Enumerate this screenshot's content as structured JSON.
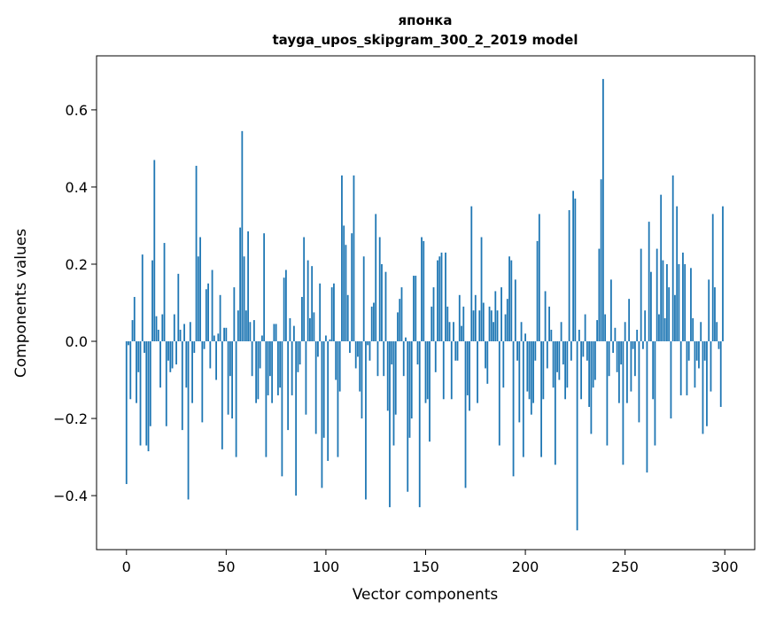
{
  "chart_data": {
    "type": "bar",
    "title": "японка",
    "subtitle": "tayga_upos_skipgram_300_2_2019 model",
    "xlabel": "Vector components",
    "ylabel": "Components values",
    "xlim": [
      -15,
      315
    ],
    "ylim": [
      -0.54,
      0.74
    ],
    "xticks": [
      0,
      50,
      100,
      150,
      200,
      250,
      300
    ],
    "xtick_labels": [
      "0",
      "50",
      "100",
      "150",
      "200",
      "250",
      "300"
    ],
    "yticks": [
      -0.4,
      -0.2,
      0.0,
      0.2,
      0.4,
      0.6
    ],
    "ytick_labels": [
      "−0.4",
      "−0.2",
      "0.0",
      "0.2",
      "0.4",
      "0.6"
    ],
    "grid": false,
    "legend": "none",
    "bar_color": "#1f77b4",
    "values": [
      -0.37,
      -0.01,
      -0.15,
      0.055,
      0.115,
      -0.16,
      -0.08,
      -0.27,
      0.225,
      -0.03,
      -0.27,
      -0.285,
      -0.22,
      0.21,
      0.47,
      0.065,
      0.03,
      -0.12,
      0.07,
      0.255,
      -0.22,
      -0.05,
      -0.08,
      -0.07,
      0.07,
      -0.06,
      0.175,
      0.03,
      -0.23,
      0.045,
      -0.12,
      -0.41,
      0.05,
      -0.16,
      -0.03,
      0.455,
      0.22,
      0.27,
      -0.21,
      -0.02,
      0.135,
      0.15,
      -0.07,
      0.185,
      0.015,
      -0.1,
      0.02,
      0.12,
      -0.28,
      0.035,
      0.035,
      -0.19,
      -0.09,
      -0.2,
      0.14,
      -0.3,
      0.08,
      0.295,
      0.545,
      0.22,
      0.08,
      0.285,
      0.05,
      -0.09,
      0.055,
      -0.16,
      -0.15,
      -0.07,
      0.015,
      0.28,
      -0.3,
      -0.14,
      -0.09,
      -0.16,
      0.045,
      0.045,
      -0.14,
      -0.12,
      -0.35,
      0.165,
      0.185,
      -0.23,
      0.06,
      -0.14,
      0.04,
      -0.4,
      -0.08,
      -0.06,
      0.115,
      0.27,
      -0.19,
      0.21,
      0.06,
      0.195,
      0.075,
      -0.24,
      -0.04,
      0.15,
      -0.38,
      -0.25,
      0.015,
      -0.31,
      0.005,
      0.14,
      0.15,
      -0.1,
      -0.3,
      -0.13,
      0.43,
      0.3,
      0.25,
      0.12,
      -0.03,
      0.28,
      0.43,
      -0.07,
      -0.04,
      -0.13,
      -0.2,
      0.22,
      -0.41,
      -0.01,
      -0.05,
      0.09,
      0.1,
      0.33,
      -0.09,
      0.27,
      0.2,
      -0.09,
      0.18,
      -0.18,
      -0.43,
      -0.06,
      -0.27,
      -0.19,
      0.075,
      0.11,
      0.14,
      -0.09,
      0.01,
      -0.39,
      -0.25,
      -0.2,
      0.17,
      0.17,
      -0.06,
      -0.43,
      0.27,
      0.26,
      -0.16,
      -0.15,
      -0.26,
      0.09,
      0.14,
      -0.08,
      0.21,
      0.22,
      0.23,
      -0.15,
      0.23,
      0.09,
      0.05,
      -0.15,
      0.05,
      -0.05,
      -0.05,
      0.12,
      0.04,
      0.09,
      -0.38,
      -0.14,
      -0.18,
      0.35,
      0.08,
      0.12,
      -0.16,
      0.08,
      0.27,
      0.1,
      -0.07,
      -0.11,
      0.09,
      0.08,
      0.05,
      0.13,
      0.08,
      -0.27,
      0.14,
      -0.12,
      0.07,
      0.11,
      0.22,
      0.21,
      -0.35,
      0.16,
      -0.05,
      -0.21,
      0.05,
      -0.3,
      0.02,
      -0.13,
      -0.15,
      -0.19,
      -0.16,
      -0.05,
      0.26,
      0.33,
      -0.3,
      -0.15,
      0.13,
      -0.07,
      0.09,
      0.03,
      -0.12,
      -0.32,
      -0.08,
      -0.1,
      0.05,
      -0.06,
      -0.15,
      -0.12,
      0.34,
      -0.05,
      0.39,
      0.37,
      -0.49,
      0.03,
      -0.15,
      -0.04,
      0.07,
      -0.05,
      -0.17,
      -0.24,
      -0.12,
      -0.1,
      0.055,
      0.24,
      0.42,
      0.68,
      0.07,
      -0.27,
      -0.09,
      0.16,
      -0.03,
      0.035,
      -0.08,
      -0.16,
      -0.06,
      -0.32,
      0.05,
      -0.16,
      0.11,
      -0.13,
      -0.02,
      -0.09,
      0.03,
      -0.21,
      0.24,
      -0.02,
      0.08,
      -0.34,
      0.31,
      0.18,
      -0.15,
      -0.27,
      0.24,
      0.07,
      0.38,
      0.21,
      0.06,
      0.2,
      0.14,
      -0.2,
      0.43,
      0.12,
      0.35,
      0.2,
      -0.14,
      0.23,
      0.2,
      -0.14,
      -0.05,
      0.19,
      0.06,
      -0.12,
      -0.05,
      -0.07,
      0.05,
      -0.24,
      -0.05,
      -0.22,
      0.16,
      -0.13,
      0.33,
      0.14,
      0.05,
      -0.02,
      -0.17,
      0.35
    ]
  }
}
